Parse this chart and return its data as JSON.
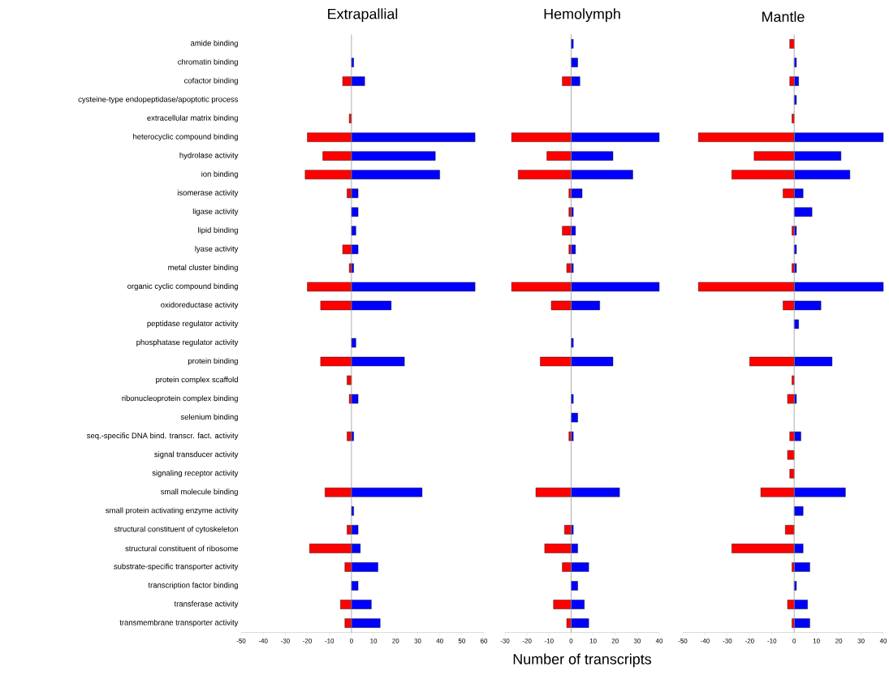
{
  "chart_data": [
    {
      "type": "bar",
      "orientation": "horizontal",
      "stacked": true,
      "title": "Extrapallial",
      "categories": [
        "amide binding",
        "chromatin binding",
        "cofactor binding",
        "cysteine-type endopeptidase/apoptotic  process",
        "extracellular matrix binding",
        "heterocyclic compound binding",
        "hydrolase activity",
        "ion binding",
        "isomerase activity",
        "ligase activity",
        "lipid binding",
        "lyase activity",
        "metal cluster binding",
        "organic cyclic compound binding",
        "oxidoreductase activity",
        "peptidase regulator activity",
        "phosphatase regulator activity",
        "protein binding",
        "protein complex scaffold",
        "ribonucleoprotein complex binding",
        "selenium binding",
        "seq.-specific DNA bind. transcr. fact. activity",
        "signal transducer activity",
        "signaling receptor activity",
        "small molecule binding",
        "small protein activating enzyme activity",
        "structural constituent of cytoskeleton",
        "structural constituent of ribosome",
        "substrate-specific transporter activity",
        "transcription factor binding",
        "transferase activity",
        "transmembrane transporter activity"
      ],
      "series": [
        {
          "color": "#ff0000",
          "values": [
            0,
            0,
            -4,
            0,
            -1,
            -20,
            -13,
            -21,
            -2,
            0,
            0,
            -4,
            -1,
            -20,
            -14,
            0,
            0,
            -14,
            -2,
            -1,
            0,
            -2,
            0,
            0,
            -12,
            0,
            -2,
            -19,
            -3,
            0,
            -5,
            -3
          ]
        },
        {
          "color": "#0000ff",
          "values": [
            0,
            1,
            6,
            0,
            0,
            56,
            38,
            40,
            3,
            3,
            2,
            3,
            1,
            56,
            18,
            0,
            2,
            24,
            0,
            3,
            0,
            1,
            0,
            0,
            32,
            1,
            3,
            4,
            12,
            3,
            9,
            13
          ]
        }
      ],
      "xlim": [
        -50,
        60
      ],
      "xticks": [
        -50,
        -40,
        -30,
        -20,
        -10,
        0,
        10,
        20,
        30,
        40,
        50,
        60
      ]
    },
    {
      "type": "bar",
      "orientation": "horizontal",
      "stacked": true,
      "title": "Hemolymph",
      "xlabel": "Number of transcripts",
      "tick_labels": "x",
      "categories": [
        null,
        null,
        null,
        null,
        null,
        null,
        null,
        null,
        null,
        null,
        null,
        null,
        null,
        null,
        null,
        null,
        null,
        null,
        null,
        null,
        null,
        null,
        null,
        null,
        null,
        null,
        null,
        null,
        null,
        null,
        null,
        null
      ],
      "series": [
        {
          "color": "#ff0000",
          "values": [
            0,
            0,
            -4,
            0,
            0,
            -27,
            -11,
            -24,
            -1,
            -1,
            -4,
            -1,
            -2,
            -27,
            -9,
            0,
            0,
            -14,
            0,
            0,
            0,
            -1,
            0,
            0,
            -16,
            0,
            -3,
            -12,
            -4,
            0,
            -8,
            -2
          ]
        },
        {
          "color": "#0000ff",
          "values": [
            1,
            3,
            4,
            0,
            0,
            40,
            19,
            28,
            5,
            1,
            2,
            2,
            1,
            40,
            13,
            0,
            1,
            19,
            0,
            1,
            3,
            1,
            0,
            0,
            22,
            0,
            1,
            3,
            8,
            3,
            6,
            8
          ]
        }
      ],
      "xlim": [
        -30,
        40
      ],
      "xticks": [
        -30,
        -20,
        -10,
        0,
        10,
        20,
        30,
        40
      ]
    },
    {
      "type": "bar",
      "orientation": "horizontal",
      "stacked": true,
      "title": "Mantle",
      "tick_labels": "x",
      "categories": [
        null,
        null,
        null,
        null,
        null,
        null,
        null,
        null,
        null,
        null,
        null,
        null,
        null,
        null,
        null,
        null,
        null,
        null,
        null,
        null,
        null,
        null,
        null,
        null,
        null,
        null,
        null,
        null,
        null,
        null,
        null,
        null
      ],
      "series": [
        {
          "color": "#ff0000",
          "values": [
            -2,
            0,
            -2,
            0,
            -1,
            -43,
            -18,
            -28,
            -5,
            0,
            -1,
            0,
            -1,
            -43,
            -5,
            0,
            0,
            -20,
            -1,
            -3,
            0,
            -2,
            -3,
            -2,
            -15,
            0,
            -4,
            -28,
            -1,
            0,
            -3,
            -1
          ]
        },
        {
          "color": "#0000ff",
          "values": [
            0,
            1,
            2,
            1,
            0,
            40,
            21,
            25,
            4,
            8,
            1,
            1,
            1,
            40,
            12,
            2,
            0,
            17,
            0,
            1,
            0,
            3,
            0,
            0,
            23,
            4,
            0,
            4,
            7,
            1,
            6,
            7
          ]
        }
      ],
      "xlim": [
        -50,
        40
      ],
      "xticks": [
        -50,
        -40,
        -30,
        -20,
        -10,
        0,
        10,
        20,
        30,
        40
      ]
    }
  ]
}
